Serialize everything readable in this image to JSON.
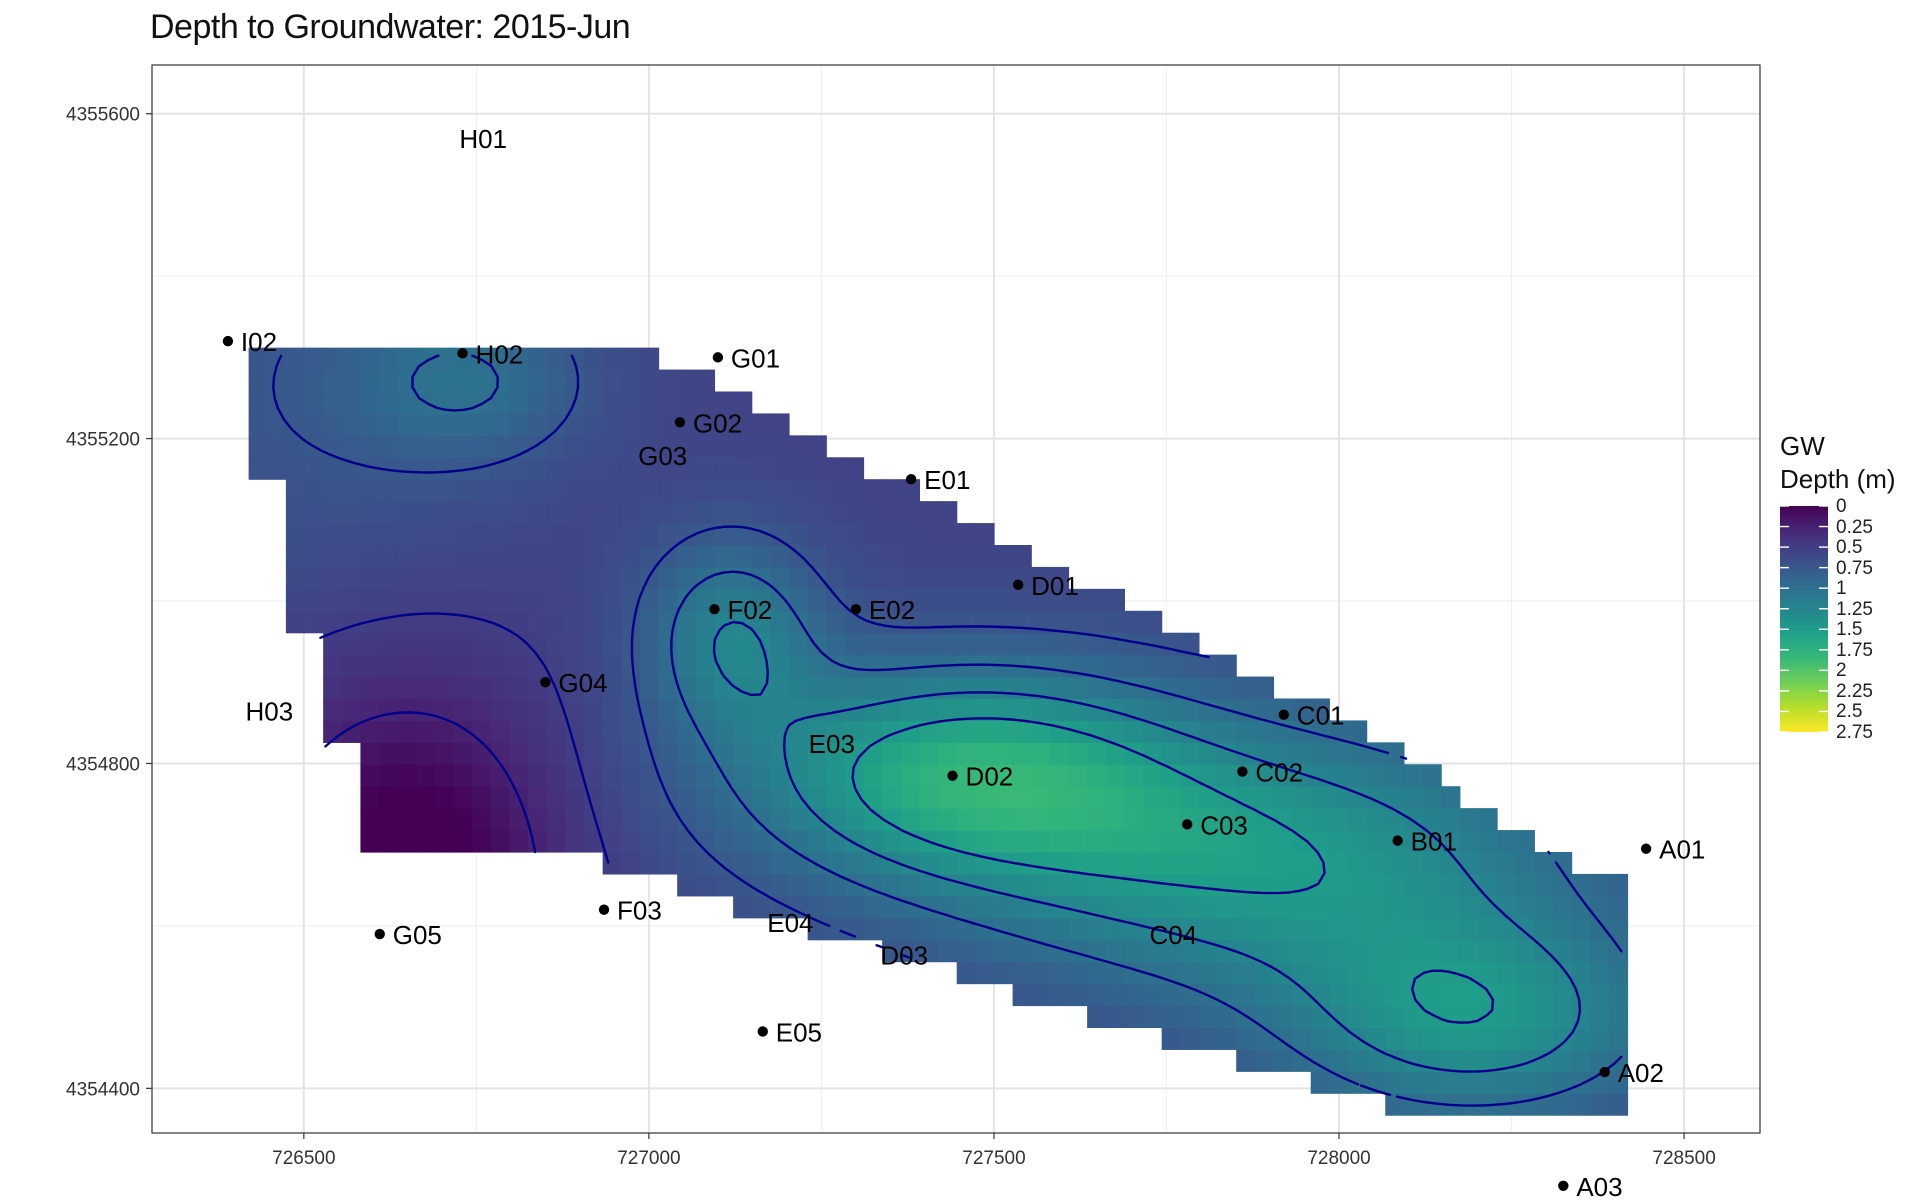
{
  "chart_data": {
    "type": "heatmap",
    "title": "Depth to Groundwater: 2015-Jun",
    "xlabel": "",
    "ylabel": "",
    "xlim": [
      726280,
      728610
    ],
    "ylim": [
      4354345,
      4355660
    ],
    "x_ticks": [
      726500,
      727000,
      727500,
      728000,
      728500
    ],
    "x_tick_labels": [
      "726500",
      "727000",
      "727500",
      "728000",
      "728500"
    ],
    "y_ticks": [
      4354400,
      4354800,
      4355200,
      4355600
    ],
    "y_tick_labels": [
      "4354400",
      "4354800",
      "4355200",
      "4355600"
    ],
    "grid": true,
    "legend": {
      "title": "GW\nDepth (m)",
      "placement": "right",
      "labels": [
        "0",
        "0.25",
        "0.5",
        "0.75",
        "1",
        "1.25",
        "1.5",
        "1.75",
        "2",
        "2.25",
        "2.5",
        "2.75"
      ],
      "min": 0,
      "max": 2.75
    },
    "colormap": [
      "#440154",
      "#482878",
      "#3e4a89",
      "#31688e",
      "#26828e",
      "#1f9e89",
      "#35b779",
      "#6ece58",
      "#b5de2b",
      "#fde725"
    ],
    "contour_color": "#00008b",
    "wells": [
      {
        "name": "I02",
        "x": 726390,
        "y": 4355320,
        "marker": true
      },
      {
        "name": "H01",
        "x": 726760,
        "y": 4355570,
        "marker": false
      },
      {
        "name": "H02",
        "x": 726730,
        "y": 4355305,
        "marker": true
      },
      {
        "name": "G01",
        "x": 727100,
        "y": 4355300,
        "marker": true
      },
      {
        "name": "G02",
        "x": 727045,
        "y": 4355220,
        "marker": true
      },
      {
        "name": "E01",
        "x": 727380,
        "y": 4355150,
        "marker": true
      },
      {
        "name": "G03",
        "x": 727020,
        "y": 4355180,
        "marker": false
      },
      {
        "name": "F02",
        "x": 727095,
        "y": 4354990,
        "marker": true
      },
      {
        "name": "E02",
        "x": 727300,
        "y": 4354990,
        "marker": true
      },
      {
        "name": "D01",
        "x": 727535,
        "y": 4355020,
        "marker": true
      },
      {
        "name": "G04",
        "x": 726850,
        "y": 4354900,
        "marker": true
      },
      {
        "name": "H03",
        "x": 726450,
        "y": 4354865,
        "marker": false
      },
      {
        "name": "C01",
        "x": 727920,
        "y": 4354860,
        "marker": true
      },
      {
        "name": "E03",
        "x": 727265,
        "y": 4354825,
        "marker": false
      },
      {
        "name": "D02",
        "x": 727440,
        "y": 4354785,
        "marker": true
      },
      {
        "name": "C02",
        "x": 727860,
        "y": 4354790,
        "marker": true
      },
      {
        "name": "C03",
        "x": 727780,
        "y": 4354725,
        "marker": true
      },
      {
        "name": "B01",
        "x": 728085,
        "y": 4354705,
        "marker": true
      },
      {
        "name": "A01",
        "x": 728445,
        "y": 4354695,
        "marker": true
      },
      {
        "name": "F03",
        "x": 726935,
        "y": 4354620,
        "marker": true
      },
      {
        "name": "E04",
        "x": 727205,
        "y": 4354605,
        "marker": false
      },
      {
        "name": "C04",
        "x": 727760,
        "y": 4354590,
        "marker": false
      },
      {
        "name": "G05",
        "x": 726610,
        "y": 4354590,
        "marker": true
      },
      {
        "name": "D03",
        "x": 727370,
        "y": 4354565,
        "marker": false
      },
      {
        "name": "E05",
        "x": 727165,
        "y": 4354470,
        "marker": true
      },
      {
        "name": "A02",
        "x": 728385,
        "y": 4354420,
        "marker": true
      },
      {
        "name": "A03",
        "x": 728325,
        "y": 4354280,
        "marker": true
      }
    ],
    "highs": [
      {
        "x": 727450,
        "y": 4354790,
        "value": 1.6,
        "sx": 230,
        "sy": 95
      },
      {
        "x": 727900,
        "y": 4354680,
        "value": 1.45,
        "sx": 320,
        "sy": 120
      },
      {
        "x": 728200,
        "y": 4354480,
        "value": 1.35,
        "sx": 200,
        "sy": 90
      },
      {
        "x": 727120,
        "y": 4354960,
        "value": 1.2,
        "sx": 90,
        "sy": 85
      },
      {
        "x": 726740,
        "y": 4355270,
        "value": 0.95,
        "sx": 120,
        "sy": 70
      },
      {
        "x": 726650,
        "y": 4354660,
        "value": -0.15,
        "sx": 150,
        "sy": 160
      }
    ],
    "base_value": 0.55,
    "contour_levels": [
      0.25,
      0.5,
      0.75,
      1.0,
      1.25,
      1.5
    ]
  }
}
